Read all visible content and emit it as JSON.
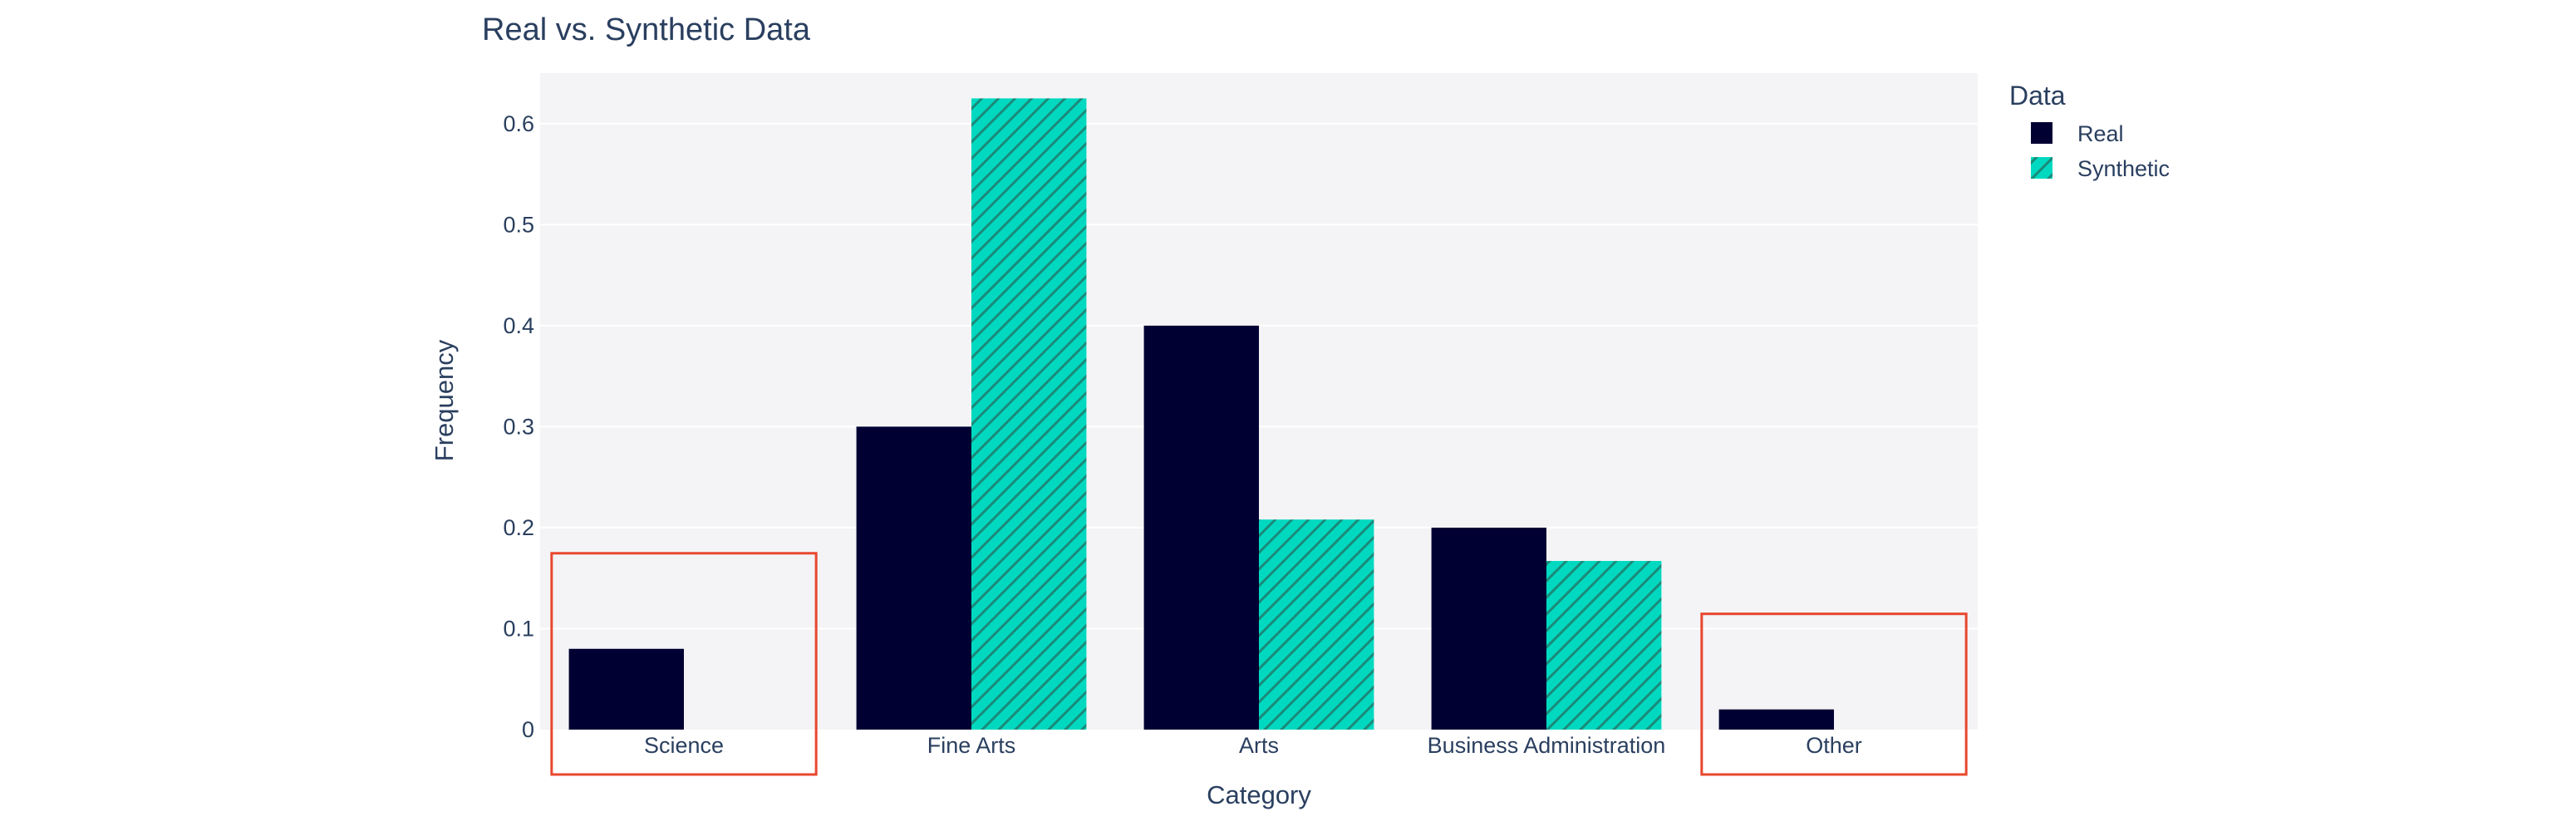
{
  "chart_data": {
    "type": "bar",
    "title": "Real vs. Synthetic Data",
    "xlabel": "Category",
    "ylabel": "Frequency",
    "categories": [
      "Science",
      "Fine Arts",
      "Arts",
      "Business Administration",
      "Other"
    ],
    "ylim": [
      0,
      0.65
    ],
    "yticks": [
      0,
      0.1,
      0.2,
      0.3,
      0.4,
      0.5,
      0.6
    ],
    "ytick_labels": [
      "0",
      "0.1",
      "0.2",
      "0.3",
      "0.4",
      "0.5",
      "0.6"
    ],
    "grid": true,
    "legend_title": "Data",
    "legend_position": "top-right, outside plot",
    "series": [
      {
        "name": "Real",
        "values": [
          0.08,
          0.3,
          0.4,
          0.2,
          0.02
        ],
        "color": "#000033",
        "pattern": "solid"
      },
      {
        "name": "Synthetic",
        "values": [
          0.0,
          0.625,
          0.208,
          0.167,
          0.0
        ],
        "color": "#00d9c0",
        "pattern": "diagonal-hatch"
      }
    ],
    "highlight_boxes": {
      "categories": [
        "Science",
        "Other"
      ],
      "color": "#e8472e"
    },
    "colors": {
      "plot_background": "#f4f4f6",
      "text": "#2a3f5f",
      "grid": "#ffffff",
      "hatch": "#1b8a7a"
    }
  }
}
